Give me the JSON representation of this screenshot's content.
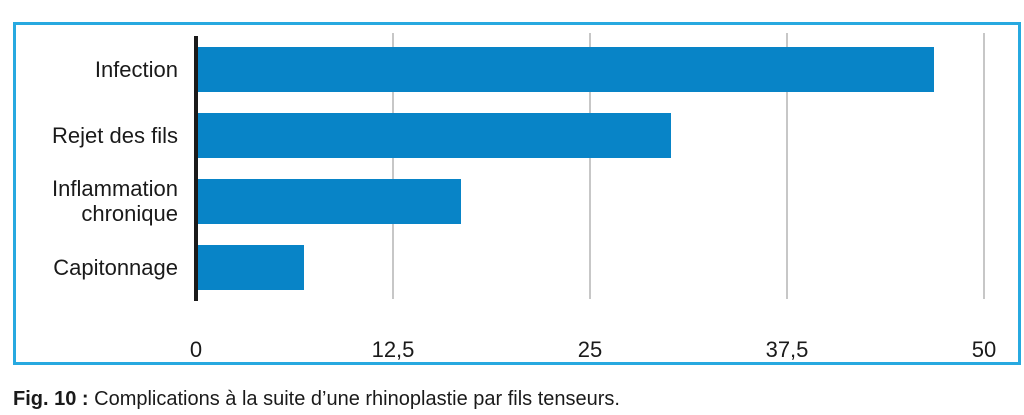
{
  "figure": {
    "caption": {
      "prefix": "Fig. 10 :",
      "text": "Complications à la suite d’une rhinoplastie par fils tenseurs."
    }
  },
  "chart_data": {
    "type": "bar",
    "orientation": "horizontal",
    "title": "",
    "xlabel": "",
    "ylabel": "",
    "categories": [
      "Infection",
      "Rejet des fils",
      "Inflammation chronique",
      "Capitonnage"
    ],
    "values": [
      46.7,
      30,
      16.7,
      6.7
    ],
    "xlim": [
      0,
      50
    ],
    "xticks": [
      0,
      12.5,
      25,
      37.5,
      50
    ],
    "xtick_labels": [
      "0",
      "12,5",
      "25",
      "37,5",
      "50"
    ],
    "legend": "none",
    "grid": "vertical-gridlines-at-ticks",
    "colors": {
      "bar": "#0884c7",
      "frame_border": "#27a9e0",
      "gridline": "#c7c7c7",
      "axis": "#1a1a1a",
      "text": "#1a1a1a"
    }
  }
}
